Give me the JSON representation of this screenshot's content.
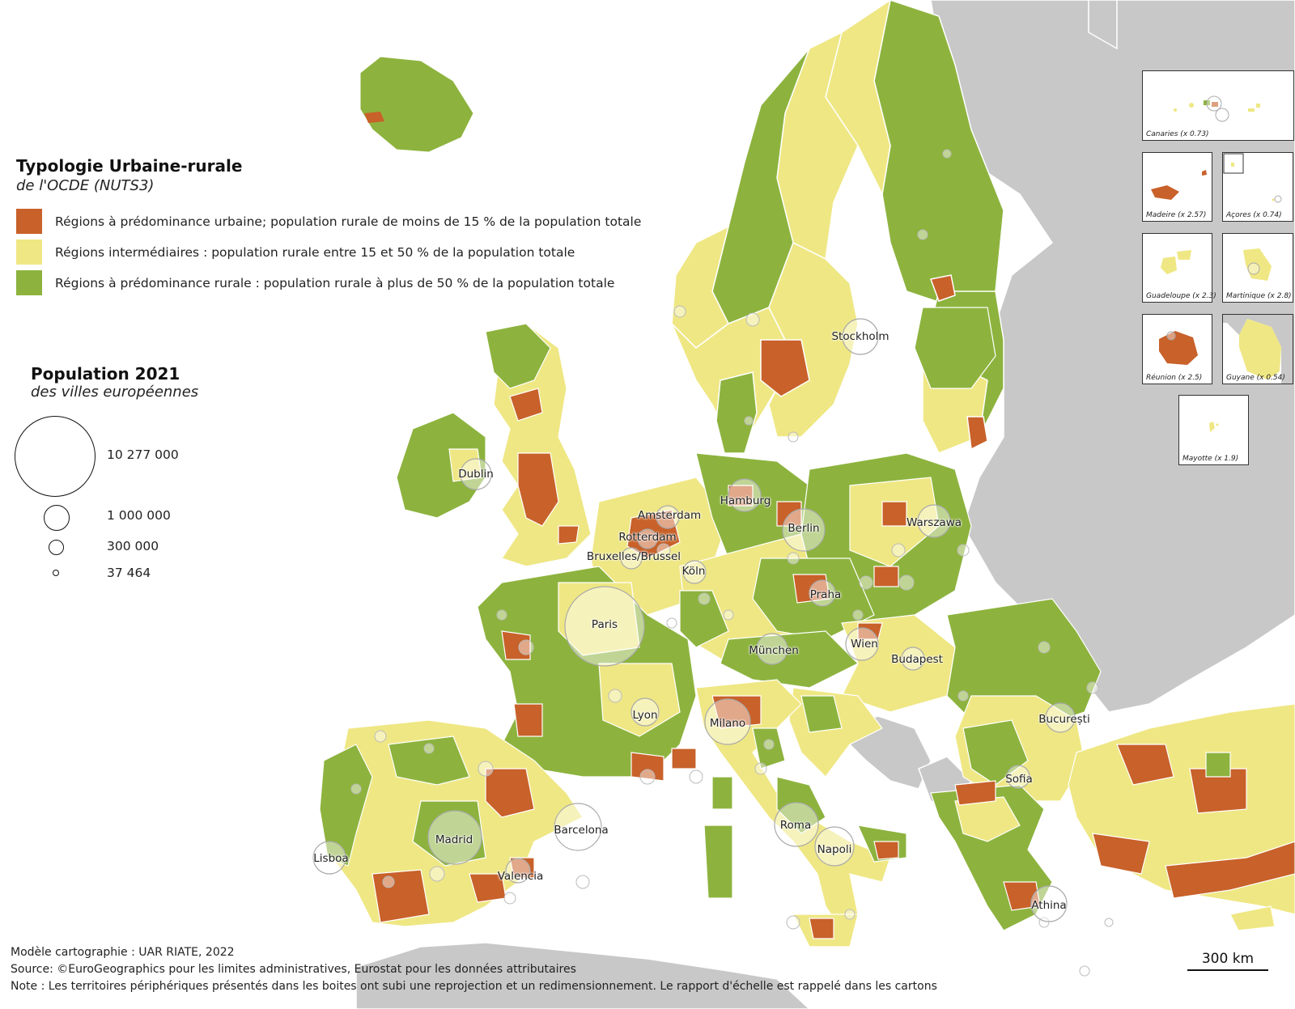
{
  "legend": {
    "title": "Typologie Urbaine-rurale",
    "subtitle": "de l'OCDE (NUTS3)",
    "categories": [
      {
        "label": "Régions à prédominance urbaine; population rurale de moins de 15 % de la population totale",
        "color": "#c8612a"
      },
      {
        "label": "Régions intermédiaires : population rurale entre 15 et 50 % de la population totale",
        "color": "#efe784"
      },
      {
        "label": "Régions à prédominance rurale : population rurale à plus de 50 % de la population totale",
        "color": "#8db33e"
      }
    ]
  },
  "population_legend": {
    "title": "Population 2021",
    "subtitle": "des villes européennes",
    "entries": [
      {
        "label": "10 277 000",
        "value": 10277000
      },
      {
        "label": "1 000 000",
        "value": 1000000
      },
      {
        "label": "300 000",
        "value": 300000
      },
      {
        "label": "37 464",
        "value": 37464
      }
    ]
  },
  "cities": [
    {
      "name": "Stockholm"
    },
    {
      "name": "Dublin"
    },
    {
      "name": "Hamburg"
    },
    {
      "name": "Berlin"
    },
    {
      "name": "Amsterdam"
    },
    {
      "name": "Warszawa"
    },
    {
      "name": "Rotterdam"
    },
    {
      "name": "Bruxelles/Brussel"
    },
    {
      "name": "Köln"
    },
    {
      "name": "Praha"
    },
    {
      "name": "Paris"
    },
    {
      "name": "Wien"
    },
    {
      "name": "München"
    },
    {
      "name": "Budapest"
    },
    {
      "name": "Lyon"
    },
    {
      "name": "Milano"
    },
    {
      "name": "București"
    },
    {
      "name": "Sofia"
    },
    {
      "name": "Barcelona"
    },
    {
      "name": "Roma"
    },
    {
      "name": "Madrid"
    },
    {
      "name": "Napoli"
    },
    {
      "name": "Lisboa"
    },
    {
      "name": "Valencia"
    },
    {
      "name": "Athina"
    }
  ],
  "insets": [
    {
      "name": "canaries",
      "label": "Canaries (x 0.73)"
    },
    {
      "name": "madeire",
      "label": "Madeire (x 2.57)"
    },
    {
      "name": "acores",
      "label": "Açores (x 0.74)"
    },
    {
      "name": "guadeloupe",
      "label": "Guadeloupe (x 2.3)"
    },
    {
      "name": "martinique",
      "label": "Martinique (x 2.8)"
    },
    {
      "name": "reunion",
      "label": "Réunion (x 2.5)"
    },
    {
      "name": "guyane",
      "label": "Guyane (x 0.54)"
    },
    {
      "name": "mayotte",
      "label": "Mayotte (x 1.9)"
    }
  ],
  "credits": [
    "Modèle cartographie : UAR RIATE, 2022",
    "Source: ©EuroGeographics pour les limites administratives, Eurostat pour les données attributaires",
    "Note : Les territoires périphériques présentés dans les boites ont subi une reprojection et un redimensionnement. Le rapport d'échelle est rappelé dans les cartons"
  ],
  "scale": {
    "label": "300 km"
  },
  "colors": {
    "urban": "#c8612a",
    "intermediate": "#efe784",
    "rural": "#8db33e",
    "non_eu": "#c8c8c8",
    "sea": "#ffffff"
  }
}
